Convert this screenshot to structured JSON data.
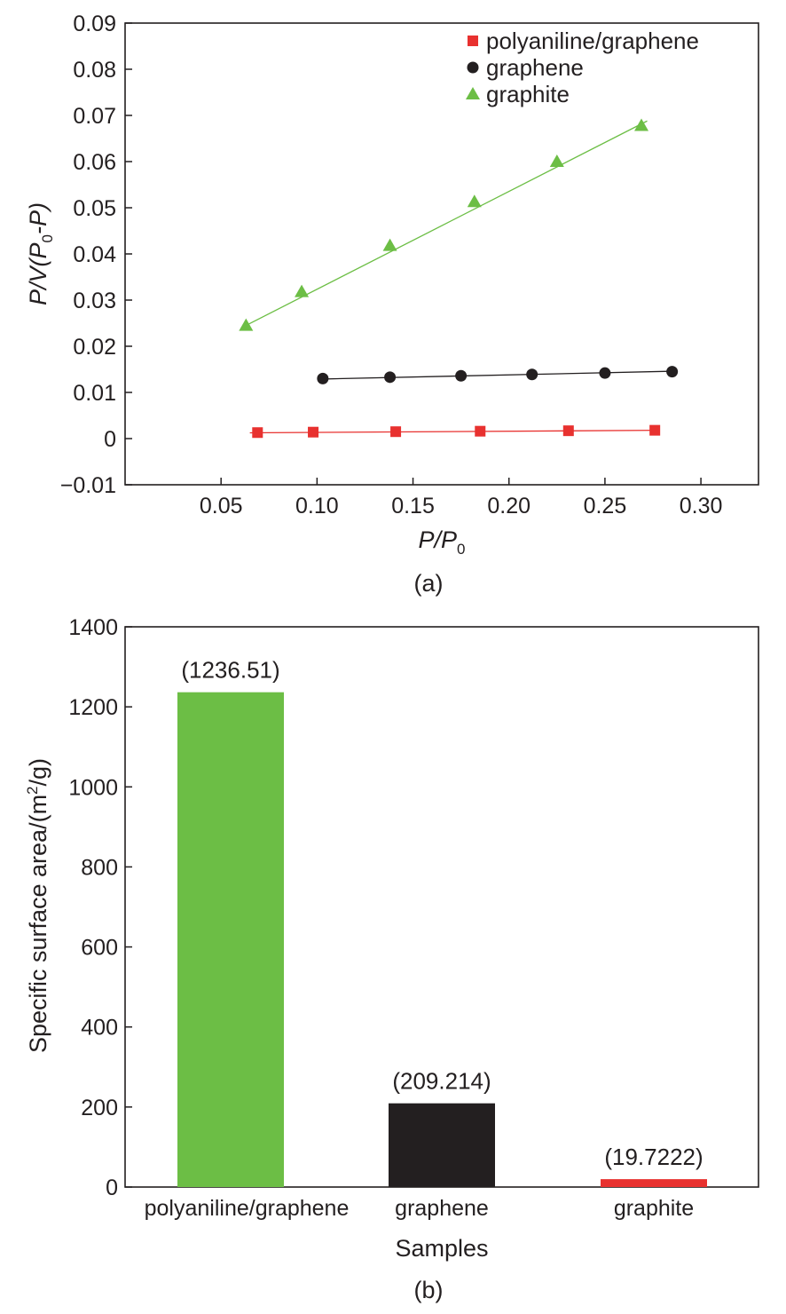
{
  "chart_data": [
    {
      "type": "scatter",
      "panel_label": "(a)",
      "xlabel": "P/P0",
      "ylabel": "P/V(P0-P)",
      "xlim": [
        0.0,
        0.33
      ],
      "ylim": [
        -0.01,
        0.09
      ],
      "x_ticks": [
        0.05,
        0.1,
        0.15,
        0.2,
        0.25,
        0.3
      ],
      "x_tick_labels": [
        "0.05",
        "0.10",
        "0.15",
        "0.20",
        "0.25",
        "0.30"
      ],
      "y_ticks": [
        -0.01,
        0,
        0.01,
        0.02,
        0.03,
        0.04,
        0.05,
        0.06,
        0.07,
        0.08,
        0.09
      ],
      "y_tick_labels": [
        "−0.01",
        "0",
        "0.01",
        "0.02",
        "0.03",
        "0.04",
        "0.05",
        "0.06",
        "0.07",
        "0.08",
        "0.09"
      ],
      "legend": "top-right",
      "series": [
        {
          "name": "polyaniline/graphene",
          "marker": "square",
          "color": "#e8312f",
          "x": [
            0.069,
            0.098,
            0.141,
            0.185,
            0.231,
            0.276
          ],
          "y": [
            0.0013,
            0.0014,
            0.0015,
            0.0016,
            0.0017,
            0.0018
          ],
          "fit": [
            [
              0.065,
              0.00125
            ],
            [
              0.278,
              0.0018
            ]
          ]
        },
        {
          "name": "graphene",
          "marker": "circle",
          "color": "#231f20",
          "x": [
            0.103,
            0.138,
            0.175,
            0.212,
            0.25,
            0.285
          ],
          "y": [
            0.013,
            0.0133,
            0.0136,
            0.0139,
            0.0142,
            0.0145
          ],
          "fit": [
            [
              0.103,
              0.0129
            ],
            [
              0.286,
              0.0146
            ]
          ]
        },
        {
          "name": "graphite",
          "marker": "triangle",
          "color": "#6cbe45",
          "x": [
            0.063,
            0.092,
            0.138,
            0.182,
            0.225,
            0.269
          ],
          "y": [
            0.0245,
            0.0318,
            0.0418,
            0.0513,
            0.06,
            0.0678
          ],
          "fit": [
            [
              0.063,
              0.0245
            ],
            [
              0.272,
              0.0688
            ]
          ]
        }
      ]
    },
    {
      "type": "bar",
      "panel_label": "(b)",
      "xlabel": "Samples",
      "ylabel": "Specific surface area/(m2/g)",
      "ylim": [
        0,
        1400
      ],
      "y_ticks": [
        0,
        200,
        400,
        600,
        800,
        1000,
        1200,
        1400
      ],
      "y_tick_labels": [
        "0",
        "200",
        "400",
        "600",
        "800",
        "1000",
        "1200",
        "1400"
      ],
      "categories": [
        "polyaniline/graphene",
        "graphene",
        "graphite"
      ],
      "values": [
        1236.51,
        209.214,
        19.7222
      ],
      "value_labels": [
        "(1236.51)",
        "(209.214)",
        "(19.7222)"
      ],
      "colors": [
        "#6cbe45",
        "#231f20",
        "#e8312f"
      ]
    }
  ]
}
